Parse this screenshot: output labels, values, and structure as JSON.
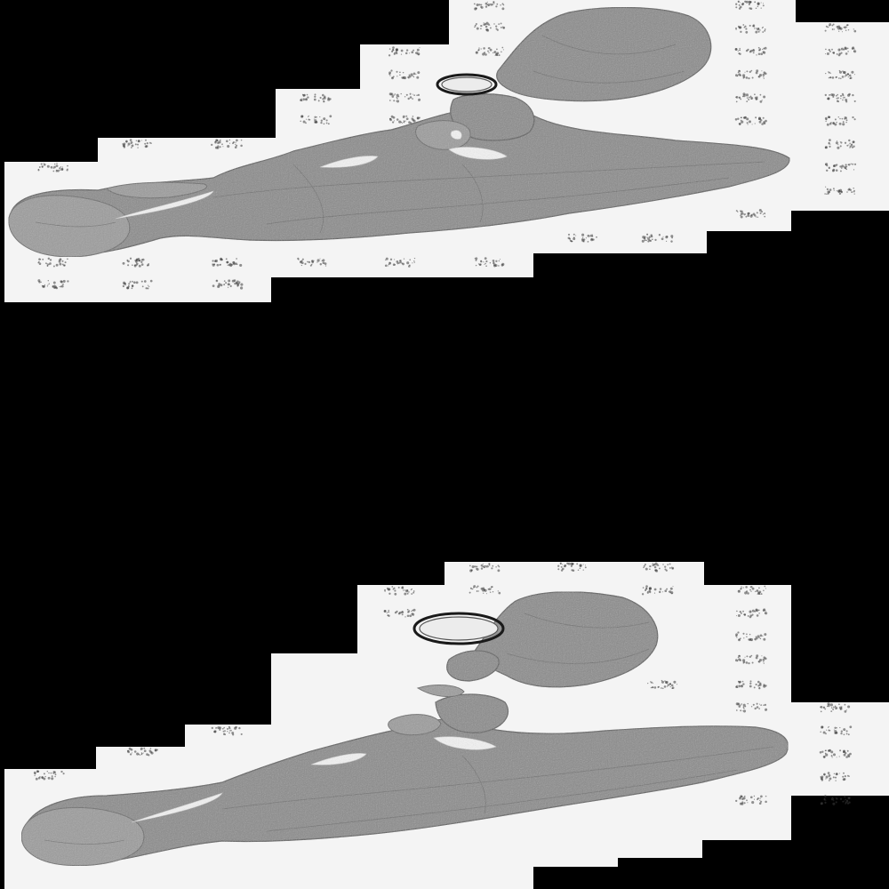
{
  "scene": {
    "background_color": "#000000",
    "tile_color": "#f4f4f4",
    "tissue_color": "#8a8a8a",
    "sections": [
      {
        "name": "upper-tissue-section"
      },
      {
        "name": "lower-tissue-section"
      }
    ]
  }
}
